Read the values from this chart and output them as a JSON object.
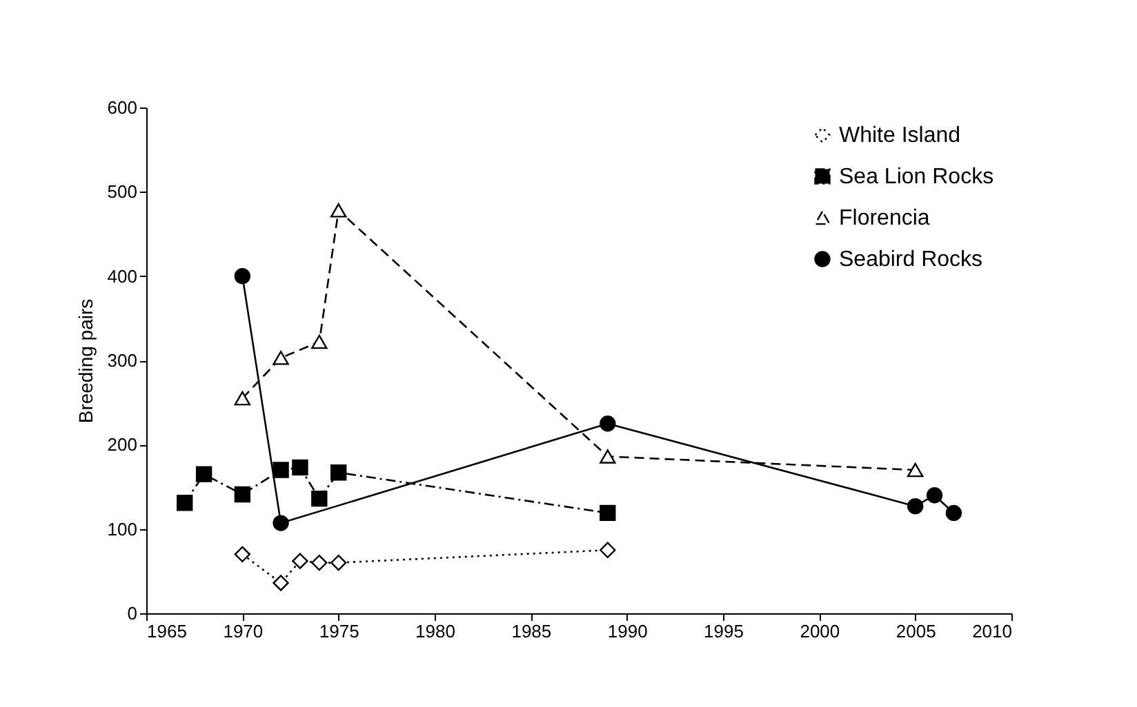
{
  "chart_data": {
    "type": "line",
    "ylabel": "Breeding pairs",
    "xlim": [
      1965,
      2010
    ],
    "xticks": [
      1965,
      1970,
      1975,
      1980,
      1985,
      1990,
      1995,
      2000,
      2005,
      2010
    ],
    "ylim": [
      0,
      600
    ],
    "yticks": [
      0,
      100,
      200,
      300,
      400,
      500,
      600
    ],
    "grid": false,
    "legend": "top right",
    "series": [
      {
        "name": "White Island",
        "color": "#000000",
        "marker": "diamond",
        "line_style": "dotted",
        "x": [
          1970,
          1972,
          1973,
          1974,
          1975,
          1989
        ],
        "values": [
          70,
          36,
          62,
          60,
          60,
          75
        ]
      },
      {
        "name": "Sea Lion Rocks",
        "color": "#000000",
        "marker": "square",
        "line_style": "dashdot",
        "x": [
          1967,
          1968,
          1970,
          1972,
          1973,
          1974,
          1975,
          1989
        ],
        "values": [
          131,
          165,
          141,
          170,
          173,
          136,
          167,
          119
        ]
      },
      {
        "name": "Florencia",
        "color": "#000000",
        "marker": "triangle",
        "line_style": "dashed",
        "x": [
          1970,
          1972,
          1974,
          1975,
          1989,
          2005
        ],
        "values": [
          255,
          303,
          322,
          478,
          186,
          170
        ]
      },
      {
        "name": "Seabird Rocks",
        "color": "#000000",
        "marker": "circle",
        "line_style": "solid",
        "x": [
          1970,
          1972,
          1989,
          2005,
          2006,
          2007
        ],
        "values": [
          400,
          107,
          225,
          127,
          140,
          119
        ]
      }
    ]
  }
}
